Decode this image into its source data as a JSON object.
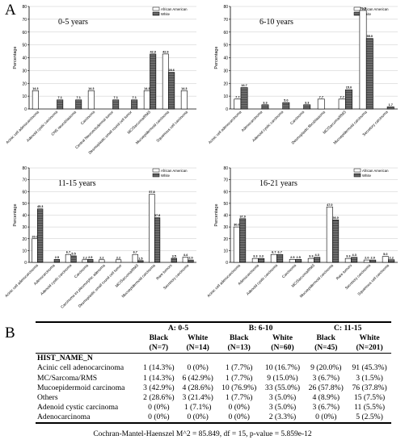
{
  "labels": {
    "panel_a": "A",
    "panel_b": "B"
  },
  "legend": [
    "African American",
    "White"
  ],
  "colors": {
    "aa_fill": "#ffffff",
    "white_fill": "#6b6b6b",
    "stroke": "#000000",
    "grid": "#c8c8c8"
  },
  "chart_data": [
    {
      "type": "bar",
      "title": "0-5 years",
      "ylabel": "Percentage",
      "ylim": [
        0,
        80
      ],
      "yticks": [
        0,
        10,
        20,
        30,
        40,
        50,
        60,
        70,
        80
      ],
      "categories": [
        "Acinic cell adenocarcinoma",
        "Adenoid cystic carcinoma",
        "CNS neuroblastoma",
        "Carcinoma",
        "Central Neuroectodermal tumor",
        "Desmoplastic small round cell tumor",
        "MC/Sarcoma/RMS",
        "Mucoepidermoid carcinoma",
        "Squamous cell carcinoma"
      ],
      "series": [
        {
          "name": "African American",
          "values": [
            14.3,
            null,
            null,
            14.3,
            null,
            null,
            14.3,
            42.9,
            14.3
          ]
        },
        {
          "name": "White",
          "values": [
            null,
            7.1,
            7.1,
            null,
            7.1,
            7.1,
            42.9,
            28.6,
            null
          ]
        }
      ],
      "value_labels": [
        [
          "14.3",
          "",
          "",
          "14.3",
          "",
          "",
          "14.3",
          "42.9",
          "14.3"
        ],
        [
          "",
          "7.1",
          "7.1",
          "",
          "7.1",
          "7.1",
          "42.9",
          "28.6",
          ""
        ]
      ],
      "legend_position": "top-right"
    },
    {
      "type": "bar",
      "title": "6-10 years",
      "ylabel": "Percentage",
      "ylim": [
        0,
        80
      ],
      "yticks": [
        0,
        10,
        20,
        30,
        40,
        50,
        60,
        70,
        80
      ],
      "categories": [
        "Acinic cell adenocarcinoma",
        "Adenocarcinoma",
        "Adenoid cystic carcinoma",
        "Carcinoma",
        "Desmoplastic fibroblastoma",
        "MC/Sarcoma/RMS",
        "Mucoepidermoid carcinoma",
        "Secretory carcinoma"
      ],
      "series": [
        {
          "name": "African American",
          "values": [
            7.7,
            null,
            null,
            null,
            7.7,
            7.7,
            76.9,
            null
          ]
        },
        {
          "name": "White",
          "values": [
            16.7,
            3.3,
            5.0,
            3.3,
            null,
            15.0,
            55.0,
            1.7
          ]
        }
      ],
      "value_labels": [
        [
          "7.7",
          "",
          "",
          "",
          "7.7",
          "7.7",
          "76.9",
          ""
        ],
        [
          "16.7",
          "3.3",
          "5.0",
          "3.3",
          "",
          "15.0",
          "55.0",
          "1.7"
        ]
      ],
      "legend_position": "top-right"
    },
    {
      "type": "bar",
      "title": "11-15 years",
      "ylabel": "Percentage",
      "ylim": [
        0,
        80
      ],
      "yticks": [
        0,
        10,
        20,
        30,
        40,
        50,
        60,
        70,
        80
      ],
      "categories": [
        "Acinic cell adenocarcinoma",
        "Adenocarcinoma",
        "Adenoid cystic carcinoma",
        "Carcinoma",
        "Carcinoma ex pleomorphic adenoma",
        "Desmoplastic small round cell tumor",
        "MC/Sarcoma/RMS",
        "Mucoepidermoid carcinoma",
        "Rare tumors",
        "Secretory carcinoma"
      ],
      "series": [
        {
          "name": "African American",
          "values": [
            20.0,
            null,
            6.7,
            2.2,
            2.2,
            2.2,
            6.7,
            57.8,
            null,
            4.4
          ]
        },
        {
          "name": "White",
          "values": [
            45.3,
            2.5,
            5.5,
            2.5,
            null,
            null,
            1.5,
            37.8,
            3.5,
            2.0
          ]
        }
      ],
      "value_labels": [
        [
          "20.0",
          "",
          "6.7",
          "2.2",
          "2.2",
          "2.2",
          "6.7",
          "57.8",
          "",
          "4.4"
        ],
        [
          "45.3",
          "2.5",
          "5.5",
          "2.5",
          "",
          "",
          "1.5",
          "37.8",
          "3.5",
          "2.0"
        ]
      ],
      "legend_position": "top-right"
    },
    {
      "type": "bar",
      "title": "16-21 years",
      "ylabel": "Percentage",
      "ylim": [
        0,
        80
      ],
      "yticks": [
        0,
        10,
        20,
        30,
        40,
        50,
        60,
        70,
        80
      ],
      "categories": [
        "Acinic cell adenocarcinoma",
        "Adenocarcinoma",
        "Adenoid cystic carcinoma",
        "Carcinoma",
        "MC/Sarcoma/RMS",
        "Mucoepidermoid carcinoma",
        "Rare tumors",
        "Secretory carcinoma",
        "Squamous cell carcinoma"
      ],
      "series": [
        {
          "name": "African American",
          "values": [
            30.0,
            3.3,
            6.7,
            2.5,
            3.3,
            47.0,
            3.3,
            2.0,
            5.0
          ]
        },
        {
          "name": "White",
          "values": [
            37.0,
            3.3,
            6.7,
            2.5,
            4.3,
            36.0,
            4.3,
            2.0,
            2.2
          ]
        }
      ],
      "value_labels": [
        [
          "30.0",
          "3.3",
          "6.7",
          "2.5",
          "3.3",
          "47.0",
          "3.3",
          "2.0",
          "5.0"
        ],
        [
          "37.0",
          "3.3",
          "6.7",
          "2.5",
          "4.3",
          "36.0",
          "4.3",
          "2.0",
          "2.2"
        ]
      ],
      "legend_position": "top-right"
    }
  ],
  "table": {
    "groups": [
      "A: 0-5",
      "B: 6-10",
      "C: 11-15"
    ],
    "subheaders": [
      "Black",
      "White",
      "Black",
      "White",
      "Black",
      "White"
    ],
    "ns": [
      "(N=7)",
      "(N=14)",
      "(N=13)",
      "(N=60)",
      "(N=45)",
      "(N=201)"
    ],
    "row_header": "HIST_NAME_N",
    "rows": [
      {
        "label": "Acinic cell adenocarcinoma",
        "cells": [
          "1 (14.3%)",
          "0 (0%)",
          "1 (7.7%)",
          "10 (16.7%)",
          "9 (20.0%)",
          "91 (45.3%)"
        ]
      },
      {
        "label": "MC/Sarcoma/RMS",
        "cells": [
          "1 (14.3%)",
          "6 (42.9%)",
          "1 (7.7%)",
          "9 (15.0%)",
          "3 (6.7%)",
          "3 (1.5%)"
        ]
      },
      {
        "label": "Mucoepidermoid carcinoma",
        "cells": [
          "3 (42.9%)",
          "4 (28.6%)",
          "10 (76.9%)",
          "33 (55.0%)",
          "26 (57.8%)",
          "76 (37.8%)"
        ]
      },
      {
        "label": "Others",
        "cells": [
          "2 (28.6%)",
          "3 (21.4%)",
          "1 (7.7%)",
          "3 (5.0%)",
          "4 (8.9%)",
          "15 (7.5%)"
        ]
      },
      {
        "label": "Adenoid cystic carcinoma",
        "cells": [
          "0 (0%)",
          "1 (7.1%)",
          "0 (0%)",
          "3 (5.0%)",
          "3 (6.7%)",
          "11 (5.5%)"
        ]
      },
      {
        "label": "Adenocarcinoma",
        "cells": [
          "0 (0%)",
          "0 (0%)",
          "0 (0%)",
          "2 (3.3%)",
          "0 (0%)",
          "5 (2.5%)"
        ]
      }
    ],
    "footnote": "Cochran-Mantel-Haenszel M^2 = 85.849, df = 15, p-value = 5.859e-12"
  }
}
